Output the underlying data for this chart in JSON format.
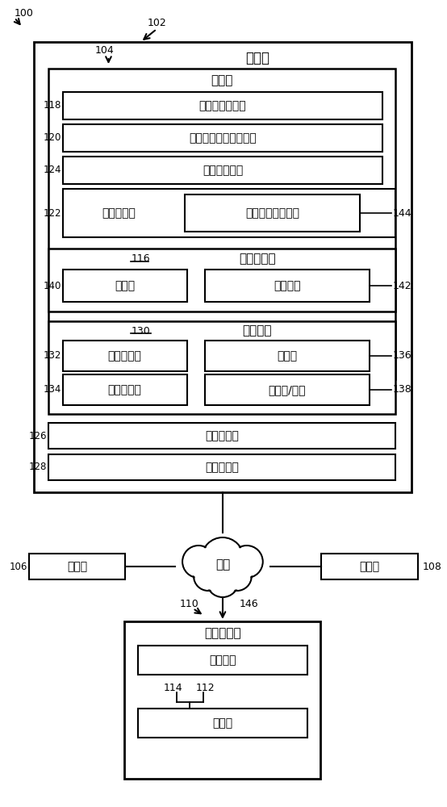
{
  "bg_color": "#ffffff",
  "fig_width": 5.54,
  "fig_height": 10.0,
  "dpi": 100,
  "labels": {
    "computer": "计算机",
    "comm_party": "通信方",
    "comm_mgr_ctrl": "通信管理控制器",
    "tact_env_ctrl": "战术和环境提示控制器",
    "data_flow_ctrl": "数据流控制器",
    "config_ctrl": "配置控制器",
    "voice_comm_config": "语音通信系统配置",
    "comm_manager": "通信管理器",
    "transceiver": "收发器",
    "protocol_proxy": "协议代理",
    "audio_device": "音频设备",
    "audio_in": "音频输入流",
    "microphone": "麦克风",
    "audio_out": "音频输出流",
    "speaker": "扬声器/耳机",
    "record_ctrl": "记录控制器",
    "presence_ctrl": "存在控制器",
    "network": "网络",
    "test_commander": "测试指挥者",
    "config_file": "配置文件"
  }
}
